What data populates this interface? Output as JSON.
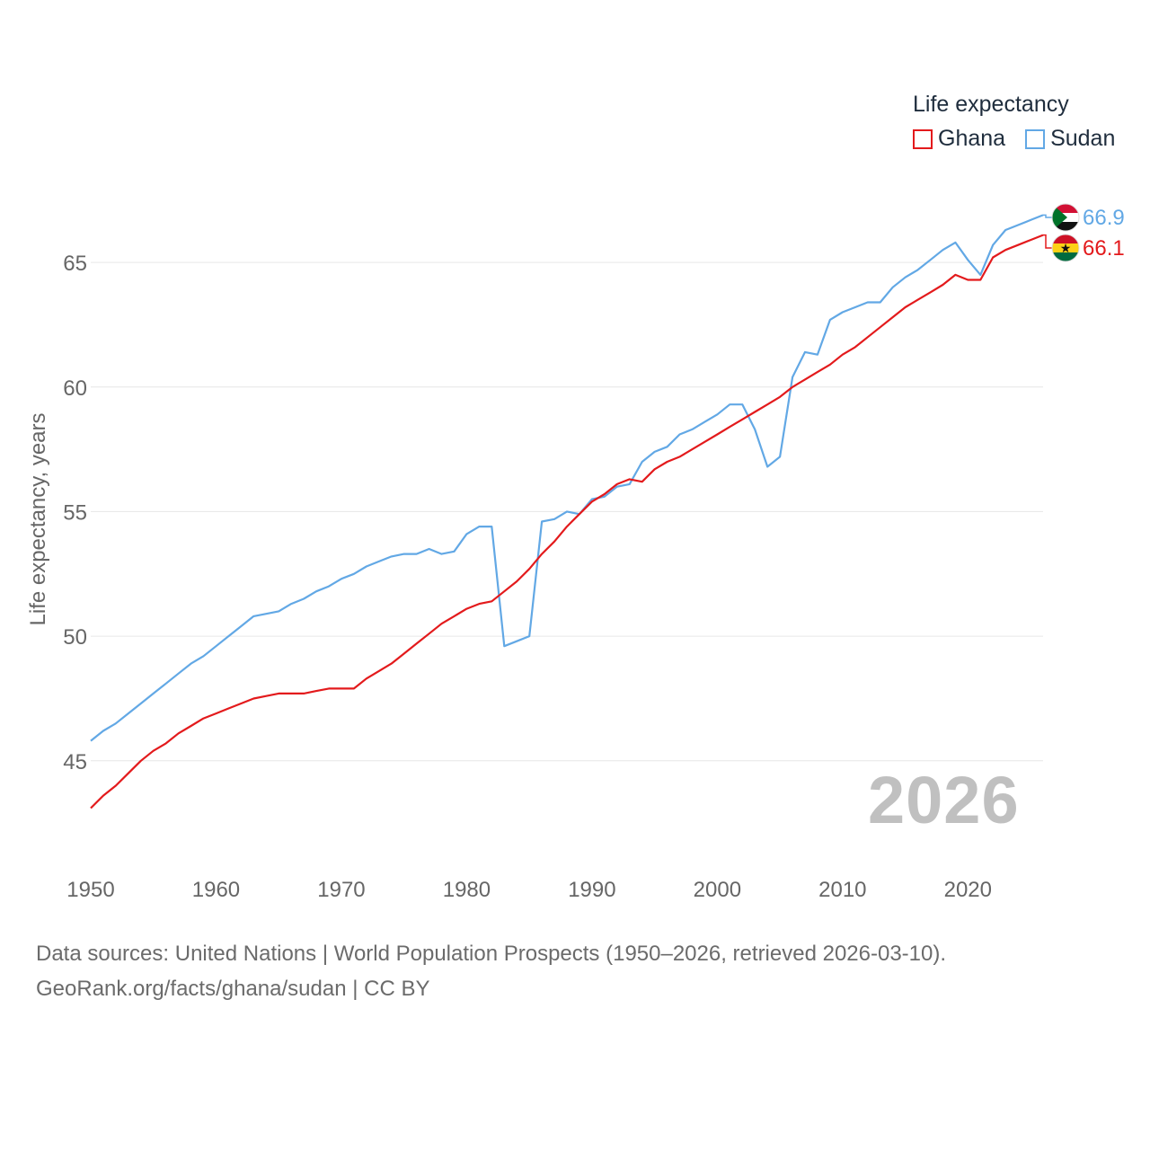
{
  "legend": {
    "title": "Life expectancy",
    "items": [
      {
        "label": "Ghana",
        "color": "#e31a1c"
      },
      {
        "label": "Sudan",
        "color": "#62a8e5"
      }
    ]
  },
  "current_year": "2026",
  "footer": {
    "line1": "Data sources: United Nations | World Population Prospects (1950–2026, retrieved 2026-03-10).",
    "line2": "GeoRank.org/facts/ghana/sudan | CC BY"
  },
  "chart_data": {
    "type": "line",
    "title": "Life expectancy",
    "xlabel": "",
    "ylabel": "Life expectancy, years",
    "xlim": [
      1950,
      2026
    ],
    "ylim": [
      42,
      68.5
    ],
    "xticks": [
      1950,
      1960,
      1970,
      1980,
      1990,
      2000,
      2010,
      2020
    ],
    "yticks": [
      45,
      50,
      55,
      60,
      65
    ],
    "grid": true,
    "legend_position": "top-right",
    "x": [
      1950,
      1951,
      1952,
      1953,
      1954,
      1955,
      1956,
      1957,
      1958,
      1959,
      1960,
      1961,
      1962,
      1963,
      1964,
      1965,
      1966,
      1967,
      1968,
      1969,
      1970,
      1971,
      1972,
      1973,
      1974,
      1975,
      1976,
      1977,
      1978,
      1979,
      1980,
      1981,
      1982,
      1983,
      1984,
      1985,
      1986,
      1987,
      1988,
      1989,
      1990,
      1991,
      1992,
      1993,
      1994,
      1995,
      1996,
      1997,
      1998,
      1999,
      2000,
      2001,
      2002,
      2003,
      2004,
      2005,
      2006,
      2007,
      2008,
      2009,
      2010,
      2011,
      2012,
      2013,
      2014,
      2015,
      2016,
      2017,
      2018,
      2019,
      2020,
      2021,
      2022,
      2023,
      2024,
      2025,
      2026
    ],
    "series": [
      {
        "name": "Ghana",
        "color": "#e31a1c",
        "end_label": "66.1",
        "flag": "ghana-flag-icon",
        "values": [
          43.1,
          43.6,
          44.0,
          44.5,
          45.0,
          45.4,
          45.7,
          46.1,
          46.4,
          46.7,
          46.9,
          47.1,
          47.3,
          47.5,
          47.6,
          47.7,
          47.7,
          47.7,
          47.8,
          47.9,
          47.9,
          47.9,
          48.3,
          48.6,
          48.9,
          49.3,
          49.7,
          50.1,
          50.5,
          50.8,
          51.1,
          51.3,
          51.4,
          51.8,
          52.2,
          52.7,
          53.3,
          53.8,
          54.4,
          54.9,
          55.4,
          55.7,
          56.1,
          56.3,
          56.2,
          56.7,
          57.0,
          57.2,
          57.5,
          57.8,
          58.1,
          58.4,
          58.7,
          59.0,
          59.3,
          59.6,
          60.0,
          60.3,
          60.6,
          60.9,
          61.3,
          61.6,
          62.0,
          62.4,
          62.8,
          63.2,
          63.5,
          63.8,
          64.1,
          64.5,
          64.3,
          64.3,
          65.2,
          65.5,
          65.7,
          65.9,
          66.1
        ]
      },
      {
        "name": "Sudan",
        "color": "#62a8e5",
        "end_label": "66.9",
        "flag": "sudan-flag-icon",
        "values": [
          45.8,
          46.2,
          46.5,
          46.9,
          47.3,
          47.7,
          48.1,
          48.5,
          48.9,
          49.2,
          49.6,
          50.0,
          50.4,
          50.8,
          50.9,
          51.0,
          51.3,
          51.5,
          51.8,
          52.0,
          52.3,
          52.5,
          52.8,
          53.0,
          53.2,
          53.3,
          53.3,
          53.5,
          53.3,
          53.4,
          54.1,
          54.4,
          54.4,
          49.6,
          49.8,
          50.0,
          54.6,
          54.7,
          55.0,
          54.9,
          55.5,
          55.6,
          56.0,
          56.1,
          57.0,
          57.4,
          57.6,
          58.1,
          58.3,
          58.6,
          58.9,
          59.3,
          59.3,
          58.3,
          56.8,
          57.2,
          60.4,
          61.4,
          61.3,
          62.7,
          63.0,
          63.2,
          63.4,
          63.4,
          64.0,
          64.4,
          64.7,
          65.1,
          65.5,
          65.8,
          65.1,
          64.5,
          65.7,
          66.3,
          66.5,
          66.7,
          66.9
        ]
      }
    ]
  }
}
